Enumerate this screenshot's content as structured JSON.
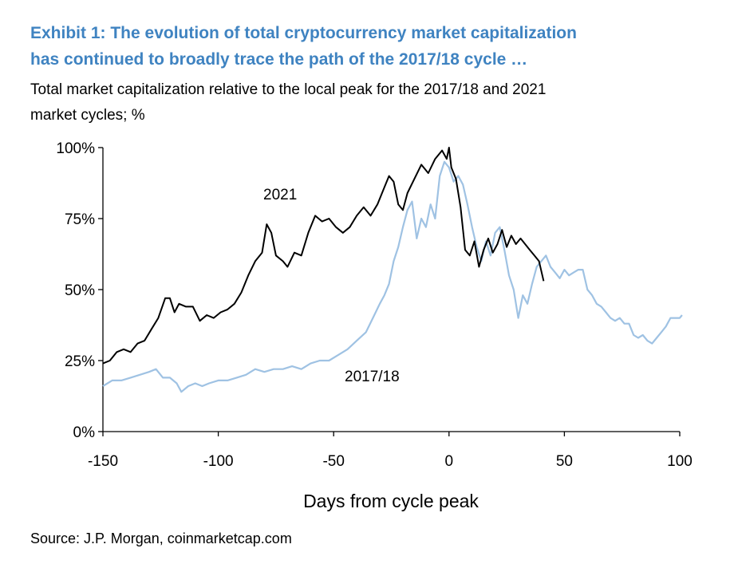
{
  "chart_data": {
    "type": "line",
    "title": [
      "Exhibit 1: The evolution of total cryptocurrency market capitalization",
      "has continued to broadly trace the path of the 2017/18 cycle …"
    ],
    "subtitle": [
      "Total market capitalization relative to the local peak for the 2017/18 and 2021",
      "market cycles; %"
    ],
    "xlabel": "Days from cycle peak",
    "source": "Source: J.P.  Morgan, coinmarketcap.com",
    "annotations": [
      "2021",
      "2017/18"
    ],
    "xlim": [
      -150,
      100
    ],
    "xticks": [
      -150,
      -100,
      -50,
      0,
      50,
      100
    ],
    "ylim": [
      0,
      100
    ],
    "yticks": [
      {
        "value": 0,
        "label": "0%"
      },
      {
        "value": 25,
        "label": "25%"
      },
      {
        "value": 50,
        "label": "50%"
      },
      {
        "value": 75,
        "label": "75%"
      },
      {
        "value": 100,
        "label": "100%"
      }
    ],
    "series": [
      {
        "name": "2017/18",
        "color": "#9fc2e3",
        "x": [
          -150,
          -146,
          -142,
          -138,
          -134,
          -130,
          -127,
          -124,
          -121,
          -118,
          -116,
          -113,
          -110,
          -107,
          -104,
          -100,
          -96,
          -92,
          -88,
          -84,
          -80,
          -76,
          -72,
          -68,
          -64,
          -60,
          -56,
          -52,
          -48,
          -44,
          -40,
          -36,
          -33,
          -30,
          -28,
          -26,
          -24,
          -22,
          -20,
          -18,
          -16,
          -14,
          -12,
          -10,
          -8,
          -6,
          -4,
          -2,
          0,
          2,
          4,
          6,
          8,
          10,
          12,
          14,
          16,
          18,
          20,
          22,
          24,
          26,
          28,
          30,
          32,
          34,
          36,
          38,
          40,
          42,
          44,
          46,
          48,
          50,
          52,
          54,
          56,
          58,
          60,
          62,
          64,
          66,
          68,
          70,
          72,
          74,
          76,
          78,
          80,
          82,
          84,
          86,
          88,
          90,
          92,
          94,
          96,
          98,
          100,
          101
        ],
        "values": [
          16,
          18,
          18,
          19,
          20,
          21,
          22,
          19,
          19,
          17,
          14,
          16,
          17,
          16,
          17,
          18,
          18,
          19,
          20,
          22,
          21,
          22,
          22,
          23,
          22,
          24,
          25,
          25,
          27,
          29,
          32,
          35,
          40,
          45,
          48,
          52,
          60,
          65,
          72,
          78,
          81,
          68,
          75,
          72,
          80,
          75,
          90,
          95,
          93,
          88,
          90,
          87,
          80,
          72,
          65,
          60,
          67,
          62,
          70,
          72,
          64,
          55,
          50,
          40,
          48,
          45,
          52,
          58,
          60,
          62,
          58,
          56,
          54,
          57,
          55,
          56,
          57,
          57,
          50,
          48,
          45,
          44,
          42,
          40,
          39,
          40,
          38,
          38,
          34,
          33,
          34,
          32,
          31,
          33,
          35,
          37,
          40,
          40,
          40,
          41
        ]
      },
      {
        "name": "2021",
        "color": "#000000",
        "x": [
          -150,
          -147,
          -144,
          -141,
          -138,
          -135,
          -132,
          -129,
          -126,
          -123,
          -121,
          -119,
          -117,
          -114,
          -111,
          -108,
          -105,
          -102,
          -99,
          -96,
          -93,
          -90,
          -87,
          -84,
          -81,
          -79,
          -77,
          -75,
          -72,
          -70,
          -67,
          -64,
          -61,
          -58,
          -55,
          -52,
          -49,
          -46,
          -43,
          -40,
          -37,
          -34,
          -31,
          -28,
          -26,
          -24,
          -22,
          -20,
          -18,
          -15,
          -12,
          -9,
          -6,
          -3,
          -1,
          0,
          1,
          3,
          5,
          7,
          9,
          11,
          13,
          15,
          17,
          19,
          21,
          23,
          25,
          27,
          29,
          31,
          33,
          35,
          37,
          39,
          41
        ],
        "values": [
          24,
          25,
          28,
          29,
          28,
          31,
          32,
          36,
          40,
          47,
          47,
          42,
          45,
          44,
          44,
          39,
          41,
          40,
          42,
          43,
          45,
          49,
          55,
          60,
          63,
          73,
          70,
          62,
          60,
          58,
          63,
          62,
          70,
          76,
          74,
          75,
          72,
          70,
          72,
          76,
          79,
          76,
          80,
          86,
          90,
          88,
          80,
          78,
          84,
          89,
          94,
          91,
          96,
          99,
          96,
          100,
          93,
          89,
          79,
          64,
          62,
          67,
          58,
          64,
          68,
          63,
          66,
          71,
          65,
          69,
          66,
          68,
          66,
          64,
          62,
          60,
          53
        ]
      }
    ]
  }
}
